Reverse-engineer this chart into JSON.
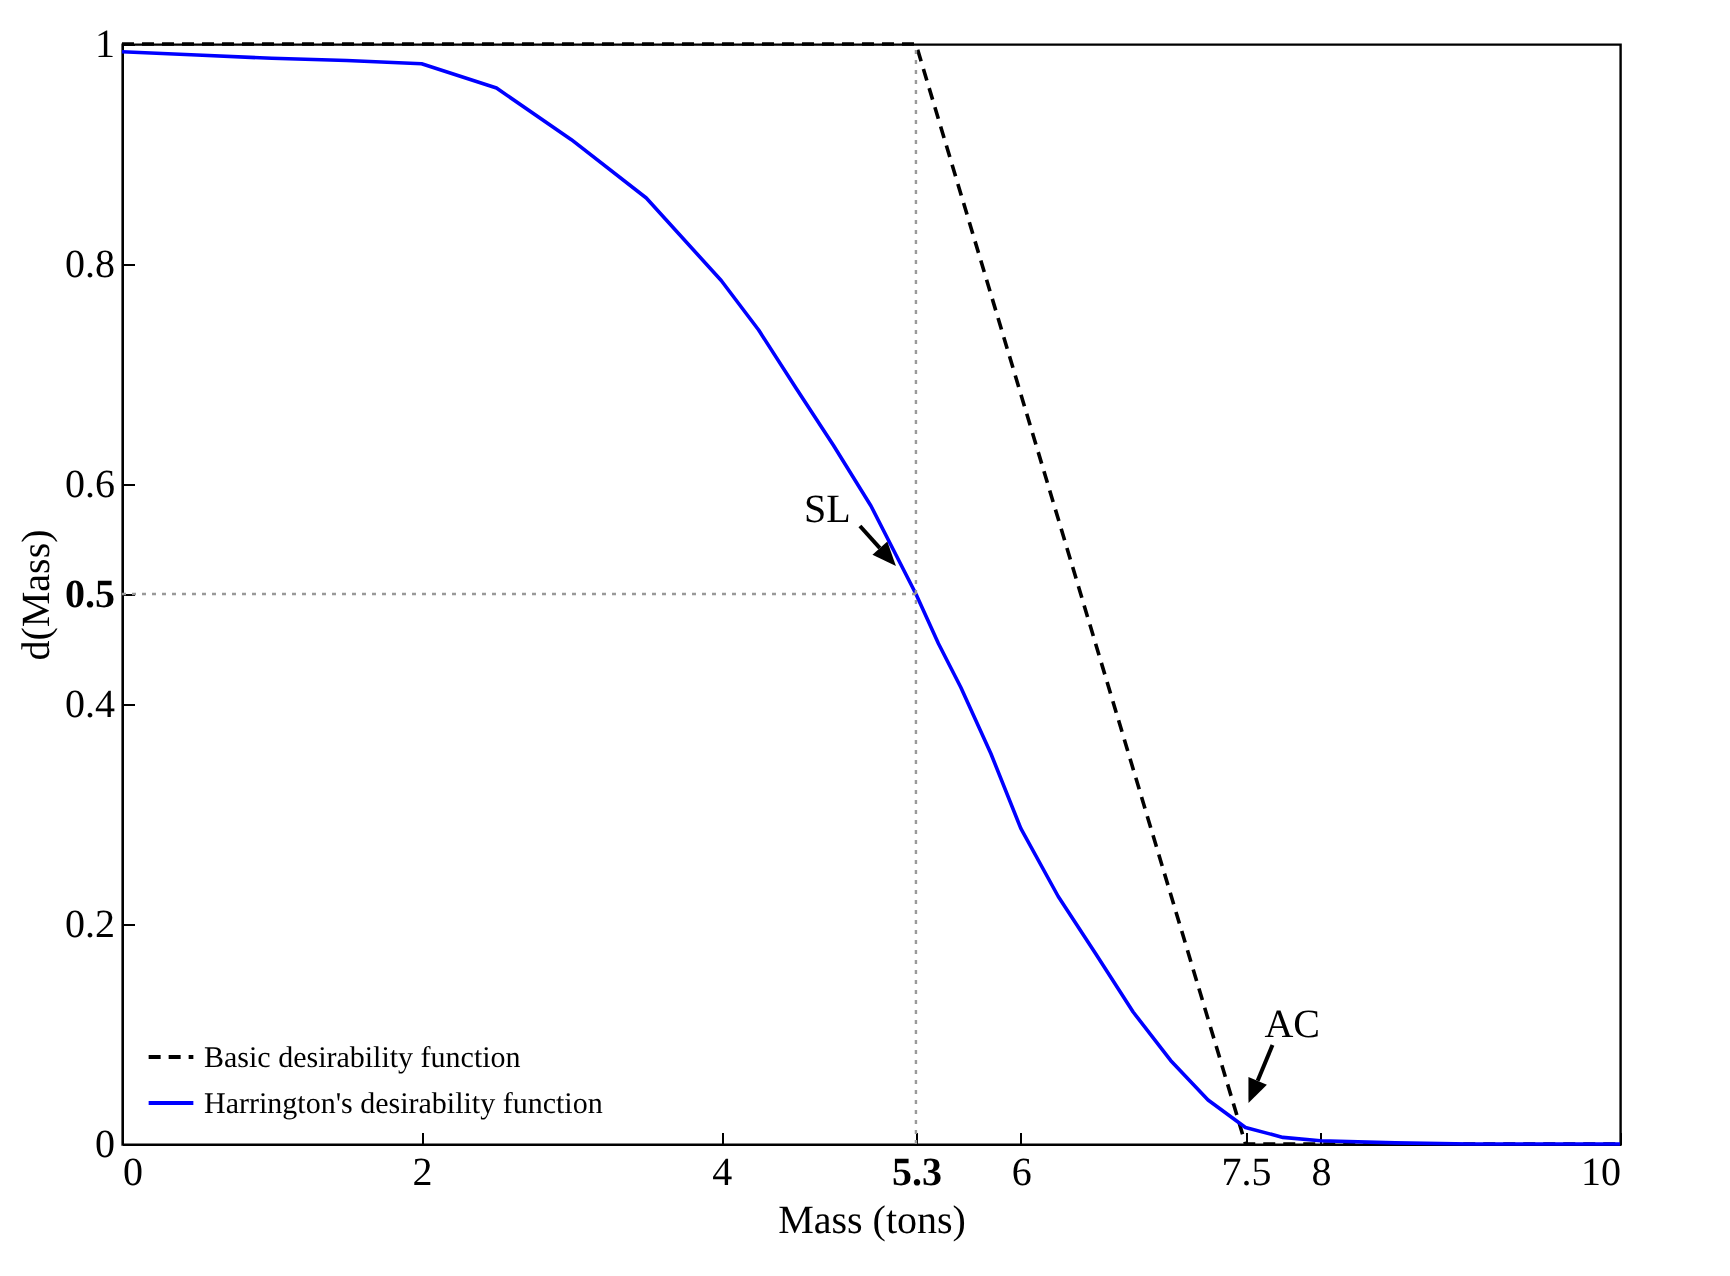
{
  "chart_data": {
    "type": "line",
    "xlabel": "Mass (tons)",
    "ylabel": "d(Mass)",
    "xlim": [
      0,
      10
    ],
    "ylim": [
      0,
      1
    ],
    "xticks": [
      0,
      2,
      4,
      5.3,
      6,
      7.5,
      8,
      10
    ],
    "yticks": [
      0,
      0.2,
      0.4,
      0.5,
      0.6,
      0.8,
      1
    ],
    "series": [
      {
        "name": "Basic desirability function",
        "color": "#000000",
        "line_style": "dashed",
        "x": [
          0,
          5.3,
          7.5,
          10
        ],
        "values": [
          1,
          1,
          0,
          0
        ]
      },
      {
        "name": "Harrington's desirability function",
        "color": "#0000ff",
        "line_style": "solid",
        "x": [
          0,
          0.5,
          1,
          1.5,
          2,
          2.5,
          3,
          3.5,
          4,
          4.25,
          4.5,
          4.75,
          5,
          5.15,
          5.3,
          5.45,
          5.6,
          5.8,
          6,
          6.25,
          6.5,
          6.75,
          7,
          7.25,
          7.5,
          7.75,
          8,
          8.5,
          9,
          10
        ],
        "values": [
          0.993,
          0.99,
          0.987,
          0.985,
          0.982,
          0.96,
          0.913,
          0.86,
          0.785,
          0.74,
          0.687,
          0.635,
          0.58,
          0.54,
          0.5,
          0.455,
          0.415,
          0.355,
          0.287,
          0.225,
          0.173,
          0.12,
          0.076,
          0.04,
          0.015,
          0.006,
          0.003,
          0.001,
          0,
          0
        ]
      }
    ],
    "ref_lines": [
      {
        "axis": "x",
        "value": 5.3,
        "color": "#999999",
        "line_style": "dotted"
      },
      {
        "axis": "y",
        "value": 0.5,
        "color": "#999999",
        "line_style": "dotted"
      }
    ],
    "annotations": [
      {
        "text": "SL",
        "x": 5.3,
        "y": 0.5
      },
      {
        "text": "AC",
        "x": 7.6,
        "y": 0.01
      }
    ],
    "legend": "bottom left",
    "grid": false
  }
}
